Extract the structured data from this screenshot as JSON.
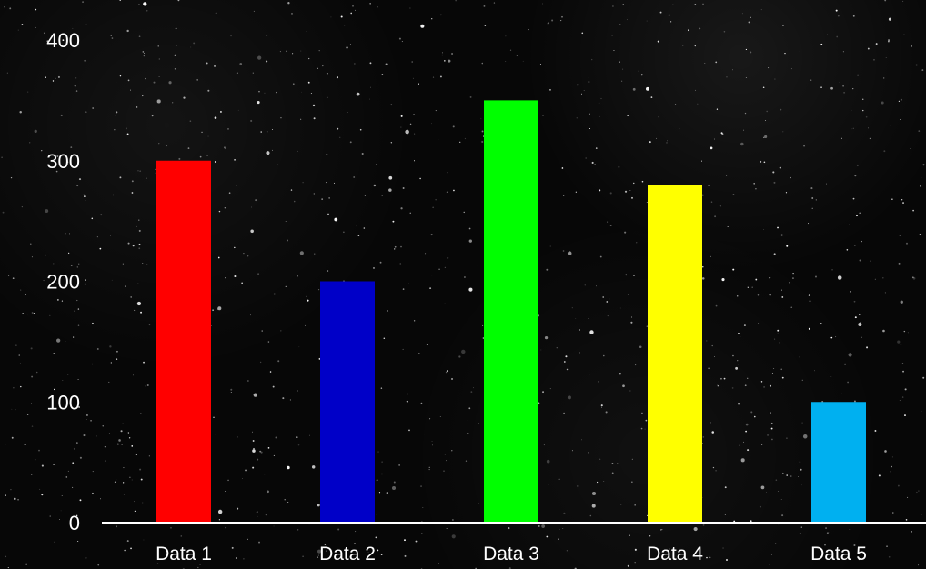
{
  "chart_data": {
    "type": "bar",
    "title": "",
    "xlabel": "",
    "ylabel": "",
    "categories": [
      "Data 1",
      "Data 2",
      "Data 3",
      "Data 4",
      "Data 5"
    ],
    "values": [
      300,
      200,
      350,
      280,
      100
    ],
    "ylim": [
      0,
      400
    ],
    "yticks": [
      0,
      100,
      200,
      300,
      400
    ],
    "grid": false,
    "legend": "none",
    "background": "black starfield texture",
    "colors": [
      "#ff0000",
      "#0000c8",
      "#00ff00",
      "#ffff00",
      "#00b0f0"
    ],
    "axis_color": "#ffffff",
    "text_color": "#ffffff"
  }
}
